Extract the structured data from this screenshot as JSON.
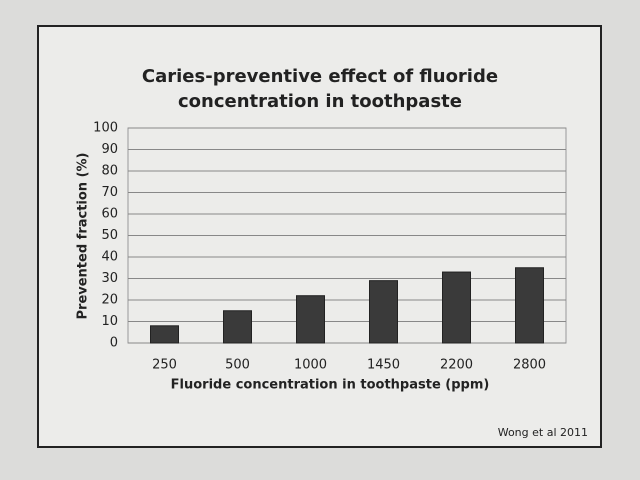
{
  "chart_data": {
    "type": "bar",
    "title": "Caries-preventive effect of fluoride concentration in toothpaste",
    "x_label": "Fluoride concentration in toothpaste (ppm)",
    "y_label": "Prevented fraction (%)",
    "source": "Wong et al 2011",
    "categories": [
      "250",
      "500",
      "1000",
      "1450",
      "2200",
      "2800"
    ],
    "values": [
      8,
      15,
      22,
      29,
      33,
      35
    ],
    "color": "#3a3a3a",
    "ylim": [
      0,
      100
    ],
    "yticks": [
      0,
      10,
      20,
      30,
      40,
      50,
      60,
      70,
      80,
      90,
      100
    ],
    "grid": true
  }
}
